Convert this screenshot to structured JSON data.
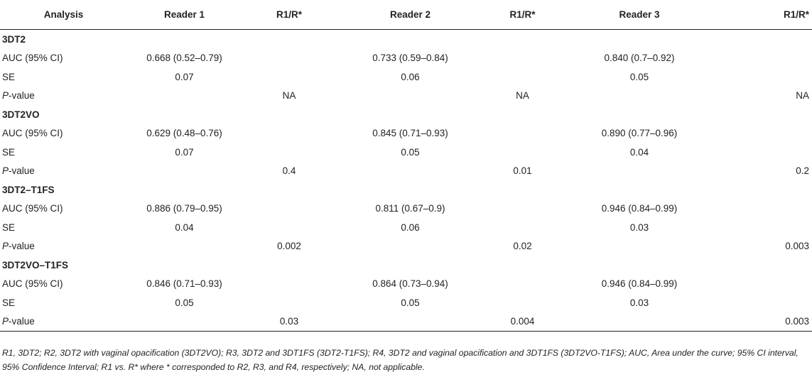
{
  "headers": [
    "Analysis",
    "Reader 1",
    "R1/R*",
    "Reader 2",
    "R1/R*",
    "Reader 3",
    "R1/R*"
  ],
  "sections": [
    {
      "title": "3DT2",
      "auc": [
        "0.668 (0.52–0.79)",
        "0.733 (0.59–0.84)",
        "0.840 (0.7–0.92)"
      ],
      "se": [
        "0.07",
        "0.06",
        "0.05"
      ],
      "p": [
        "NA",
        "NA",
        "NA"
      ]
    },
    {
      "title": "3DT2VO",
      "auc": [
        "0.629 (0.48–0.76)",
        "0.845 (0.71–0.93)",
        "0.890 (0.77–0.96)"
      ],
      "se": [
        "0.07",
        "0.05",
        "0.04"
      ],
      "p": [
        "0.4",
        "0.01",
        "0.2"
      ]
    },
    {
      "title": "3DT2–T1FS",
      "auc": [
        "0.886 (0.79–0.95)",
        "0.811 (0.67–0.9)",
        "0.946 (0.84–0.99)"
      ],
      "se": [
        "0.04",
        "0.06",
        "0.03"
      ],
      "p": [
        "0.002",
        "0.02",
        "0.003"
      ]
    },
    {
      "title": "3DT2VO–T1FS",
      "auc": [
        "0.846 (0.71–0.93)",
        "0.864 (0.73–0.94)",
        "0.946 (0.84–0.99)"
      ],
      "se": [
        "0.05",
        "0.05",
        "0.03"
      ],
      "p": [
        "0.03",
        "0.004",
        "0.003"
      ]
    }
  ],
  "labels": {
    "auc": "AUC (95% CI)",
    "se": "SE",
    "p_letter": "P",
    "p_suffix": "-value"
  },
  "footnote": "R1, 3DT2; R2, 3DT2 with vaginal opacification (3DT2VO); R3, 3DT2 and 3DT1FS (3DT2-T1FS); R4, 3DT2 and vaginal opacification and 3DT1FS (3DT2VO-T1FS); AUC, Area under the curve; 95% CI interval, 95% Confidence Interval; R1 vs. R* where * corresponded to R2, R3, and R4, respectively; NA, not applicable."
}
